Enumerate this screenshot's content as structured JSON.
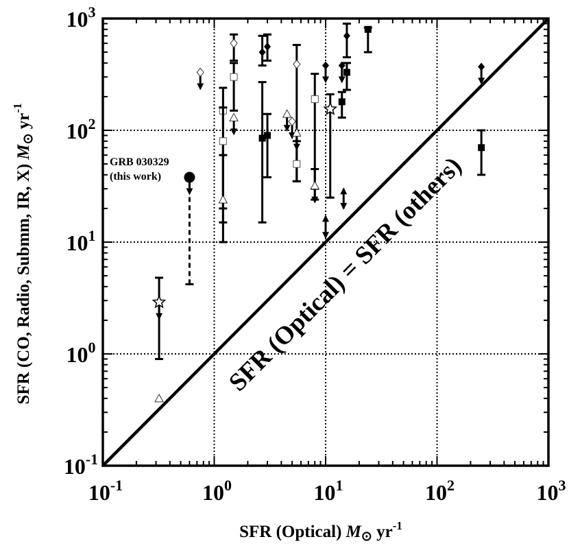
{
  "chart_data": {
    "type": "scatter",
    "x_scale": "log",
    "y_scale": "log",
    "xlim": [
      0.1,
      1000
    ],
    "ylim": [
      0.1,
      1000
    ],
    "grid": true,
    "xlabel": {
      "prefix": "SFR (Optical) ",
      "symbol": "M",
      "sub": "⊙",
      "unit": " yr",
      "exp": "-1"
    },
    "ylabel": {
      "prefix": "SFR (CO, Radio, Submm, IR, X) ",
      "symbol": "M",
      "sub": "⊙",
      "unit": " yr",
      "exp": "-1"
    },
    "x_ticks": [
      {
        "base": "10",
        "exp": "-1",
        "value": 0.1
      },
      {
        "base": "10",
        "exp": "0",
        "value": 1
      },
      {
        "base": "10",
        "exp": "1",
        "value": 10
      },
      {
        "base": "10",
        "exp": "2",
        "value": 100
      },
      {
        "base": "10",
        "exp": "3",
        "value": 1000
      }
    ],
    "y_ticks": [
      {
        "base": "10",
        "exp": "-1",
        "value": 0.1
      },
      {
        "base": "10",
        "exp": "0",
        "value": 1
      },
      {
        "base": "10",
        "exp": "1",
        "value": 10
      },
      {
        "base": "10",
        "exp": "2",
        "value": 100
      },
      {
        "base": "10",
        "exp": "3",
        "value": 1000
      }
    ],
    "diagonal_label": "SFR (Optical) = SFR (others)",
    "highlight_label_line1": "GRB 030329",
    "highlight_label_line2": "(this work)",
    "series": [
      {
        "marker": "filled-circle",
        "points": [
          {
            "x": 0.6,
            "y": 38,
            "ylo": 4.2,
            "upper_limit": true,
            "dashed": true
          }
        ]
      },
      {
        "marker": "star",
        "points": [
          {
            "x": 0.32,
            "y": 2.9,
            "ylo": 0.9,
            "yhi": 4.8,
            "upper_limit": true
          },
          {
            "x": 11,
            "y": 155,
            "ylo": 25,
            "yhi": 210
          }
        ]
      },
      {
        "marker": "open-diamond",
        "points": [
          {
            "x": 0.75,
            "y": 330,
            "upper_limit": true
          },
          {
            "x": 1.5,
            "y": 600,
            "ylo": 420,
            "yhi": 720
          },
          {
            "x": 5.5,
            "y": 390,
            "ylo": 35,
            "yhi": 580
          },
          {
            "x": 5,
            "y": 120,
            "upper_limit": true
          }
        ]
      },
      {
        "marker": "filled-diamond",
        "points": [
          {
            "x": 2.7,
            "y": 500,
            "ylo": 380,
            "yhi": 700
          },
          {
            "x": 3,
            "y": 560,
            "ylo": 420,
            "yhi": 720
          },
          {
            "x": 10,
            "y": 380,
            "upper_limit": true
          },
          {
            "x": 14,
            "y": 380,
            "upper_limit": true
          },
          {
            "x": 15.5,
            "y": 700,
            "ylo": 450,
            "yhi": 900
          },
          {
            "x": 250,
            "y": 370,
            "upper_limit": true
          }
        ]
      },
      {
        "marker": "open-square",
        "points": [
          {
            "x": 1.5,
            "y": 300,
            "ylo": 150,
            "yhi": 400
          },
          {
            "x": 1.2,
            "y": 150,
            "ylo": 10,
            "yhi": 240
          },
          {
            "x": 1.2,
            "y": 80,
            "ylo": 20,
            "yhi": 160
          },
          {
            "x": 5.5,
            "y": 50,
            "ylo": 35,
            "yhi": 80
          },
          {
            "x": 8,
            "y": 190,
            "ylo": 30,
            "yhi": 320
          }
        ]
      },
      {
        "marker": "filled-square",
        "points": [
          {
            "x": 2.7,
            "y": 85,
            "ylo": 15,
            "yhi": 270
          },
          {
            "x": 3,
            "y": 90,
            "ylo": 38,
            "yhi": 140
          },
          {
            "x": 14,
            "y": 180,
            "ylo": 130,
            "yhi": 220
          },
          {
            "x": 15.5,
            "y": 330,
            "ylo": 230,
            "yhi": 400
          },
          {
            "x": 24,
            "y": 800,
            "ylo": 500,
            "yhi": 830
          },
          {
            "x": 250,
            "y": 70,
            "ylo": 40,
            "yhi": 100
          }
        ]
      },
      {
        "marker": "open-triangle",
        "points": [
          {
            "x": 0.32,
            "y": 0.4
          },
          {
            "x": 1.2,
            "y": 24,
            "ylo": 15,
            "yhi": 60
          },
          {
            "x": 1.5,
            "y": 130,
            "upper_limit": true
          },
          {
            "x": 4.5,
            "y": 140,
            "upper_limit": true
          },
          {
            "x": 5.5,
            "y": 95,
            "upper_limit": true
          },
          {
            "x": 8,
            "y": 32,
            "ylo": 24,
            "yhi": 45,
            "upper_limit": true
          }
        ]
      },
      {
        "marker": "range-arrow",
        "points": [
          {
            "x": 10,
            "ylo": 11,
            "yhi": 17
          },
          {
            "x": 14.5,
            "ylo": 20,
            "yhi": 30
          }
        ]
      }
    ]
  }
}
